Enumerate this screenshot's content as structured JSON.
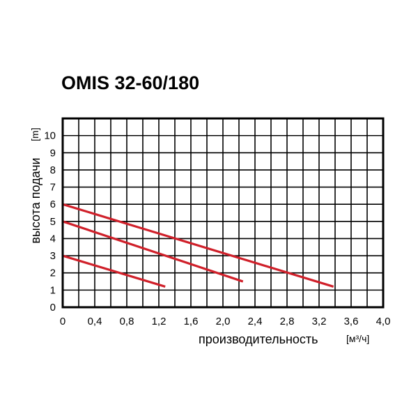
{
  "chart_data": {
    "type": "line",
    "title": "OMIS 32-60/180",
    "xlabel": "производительность",
    "xunit": "[м³/ч]",
    "ylabel": "высота подачи",
    "yunit": "[m]",
    "xlim": [
      0,
      4.0
    ],
    "ylim": [
      0,
      11
    ],
    "x_ticks": [
      "0",
      "0,4",
      "0,8",
      "1,2",
      "1,6",
      "2,0",
      "2,4",
      "2,8",
      "3,2",
      "3,6",
      "4,0"
    ],
    "y_ticks": [
      "0",
      "1",
      "2",
      "3",
      "4",
      "5",
      "6",
      "7",
      "8",
      "9",
      "10"
    ],
    "grid": true,
    "series_color": "#d0202a",
    "series": [
      {
        "x": [
          0,
          3.38
        ],
        "y": [
          6.0,
          1.2
        ]
      },
      {
        "x": [
          0,
          2.25
        ],
        "y": [
          5.0,
          1.5
        ]
      },
      {
        "x": [
          0,
          1.28
        ],
        "y": [
          3.0,
          1.2
        ]
      }
    ]
  }
}
